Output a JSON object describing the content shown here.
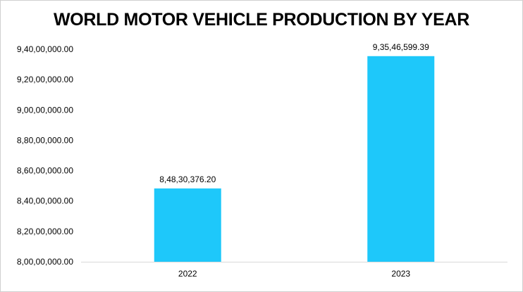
{
  "chart_data": {
    "type": "bar",
    "title": "WORLD MOTOR VEHICLE PRODUCTION BY YEAR",
    "categories": [
      "2022",
      "2023"
    ],
    "values": [
      84830376.2,
      93546599.39
    ],
    "data_labels": [
      "8,48,30,376.20",
      "9,35,46,599.39"
    ],
    "ylim": [
      80000000,
      94000000
    ],
    "yticks": [
      80000000,
      82000000,
      84000000,
      86000000,
      88000000,
      90000000,
      92000000,
      94000000
    ],
    "ytick_labels": [
      "8,00,00,000.00",
      "8,20,00,000.00",
      "8,40,00,000.00",
      "8,60,00,000.00",
      "8,80,00,000.00",
      "9,00,00,000.00",
      "9,20,00,000.00",
      "9,40,00,000.00"
    ],
    "xlabel": "",
    "ylabel": "",
    "grid": false,
    "legend": "none",
    "bar_color": "#1EC8FA"
  }
}
